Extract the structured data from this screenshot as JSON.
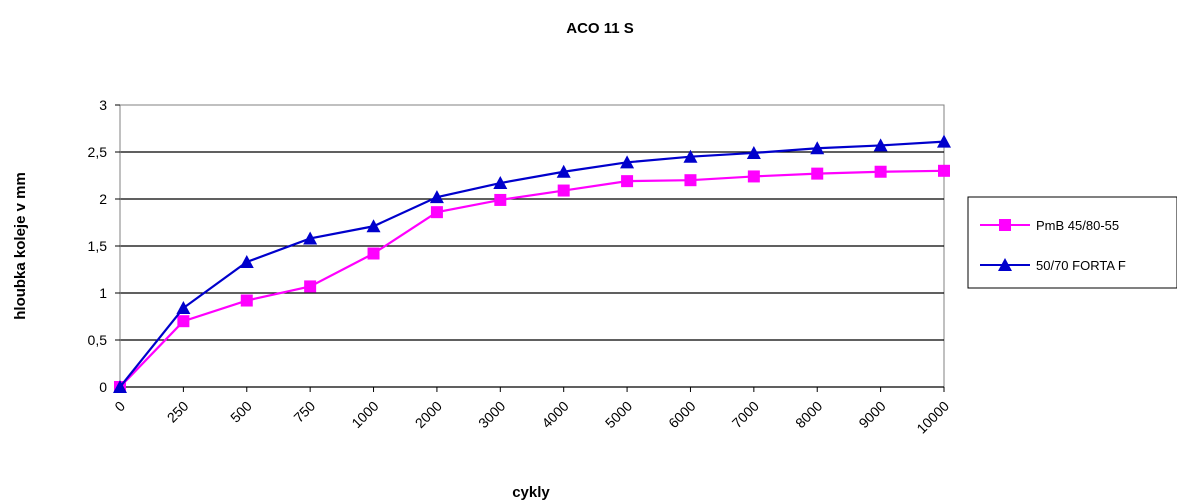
{
  "chart_data": {
    "type": "line",
    "title": "ACO 11 S",
    "xlabel": "cykly",
    "ylabel": "hloubka koleje v mm",
    "categories": [
      "0",
      "250",
      "500",
      "750",
      "1000",
      "2000",
      "3000",
      "4000",
      "5000",
      "6000",
      "7000",
      "8000",
      "9000",
      "10000"
    ],
    "yticks": [
      "0",
      "0,5",
      "1",
      "1,5",
      "2",
      "2,5",
      "3"
    ],
    "ylim": [
      0,
      3
    ],
    "grid": true,
    "legend_position": "right",
    "series": [
      {
        "name": "PmB 45/80-55",
        "marker": "square",
        "color": "#ff00ff",
        "values": [
          0,
          0.7,
          0.92,
          1.07,
          1.42,
          1.86,
          1.99,
          2.09,
          2.19,
          2.2,
          2.24,
          2.27,
          2.29,
          2.3
        ]
      },
      {
        "name": "50/70 FORTA F",
        "marker": "triangle",
        "color": "#0000cc",
        "values": [
          0,
          0.84,
          1.33,
          1.58,
          1.71,
          2.02,
          2.17,
          2.29,
          2.39,
          2.45,
          2.49,
          2.54,
          2.57,
          2.61
        ]
      }
    ]
  }
}
